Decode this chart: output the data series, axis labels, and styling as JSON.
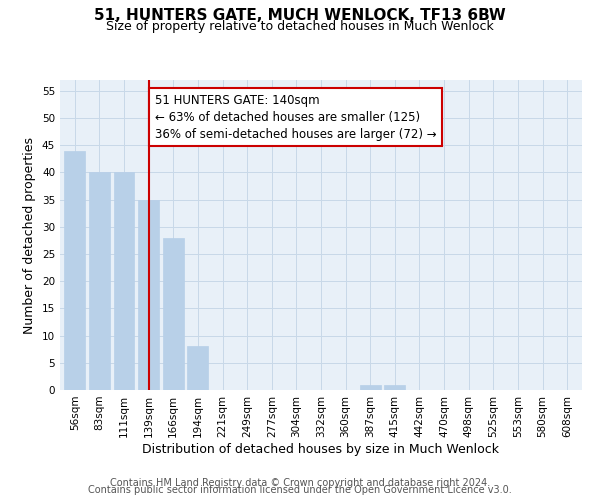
{
  "title": "51, HUNTERS GATE, MUCH WENLOCK, TF13 6BW",
  "subtitle": "Size of property relative to detached houses in Much Wenlock",
  "xlabel": "Distribution of detached houses by size in Much Wenlock",
  "ylabel": "Number of detached properties",
  "bin_labels": [
    "56sqm",
    "83sqm",
    "111sqm",
    "139sqm",
    "166sqm",
    "194sqm",
    "221sqm",
    "249sqm",
    "277sqm",
    "304sqm",
    "332sqm",
    "360sqm",
    "387sqm",
    "415sqm",
    "442sqm",
    "470sqm",
    "498sqm",
    "525sqm",
    "553sqm",
    "580sqm",
    "608sqm"
  ],
  "bar_values": [
    44,
    40,
    40,
    35,
    28,
    8,
    0,
    0,
    0,
    0,
    0,
    0,
    1,
    1,
    0,
    0,
    0,
    0,
    0,
    0,
    0
  ],
  "highlight_bin_index": 3,
  "bar_color": "#b8d0e8",
  "highlight_line_color": "#cc0000",
  "annotation_line1": "51 HUNTERS GATE: 140sqm",
  "annotation_line2": "← 63% of detached houses are smaller (125)",
  "annotation_line3": "36% of semi-detached houses are larger (72) →",
  "annotation_box_color": "#ffffff",
  "annotation_box_edge": "#cc0000",
  "ylim": [
    0,
    57
  ],
  "yticks": [
    0,
    5,
    10,
    15,
    20,
    25,
    30,
    35,
    40,
    45,
    50,
    55
  ],
  "footer_line1": "Contains HM Land Registry data © Crown copyright and database right 2024.",
  "footer_line2": "Contains public sector information licensed under the Open Government Licence v3.0.",
  "title_fontsize": 11,
  "subtitle_fontsize": 9,
  "axis_label_fontsize": 9,
  "tick_fontsize": 7.5,
  "annotation_fontsize": 8.5,
  "footer_fontsize": 7
}
